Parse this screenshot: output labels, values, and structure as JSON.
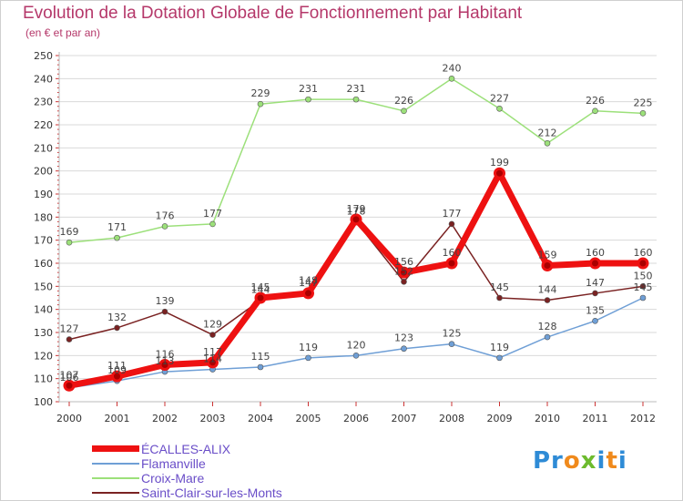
{
  "header": {
    "title": "Evolution de la Dotation Globale de Fonctionnement par Habitant",
    "subtitle": "(en € et par an)"
  },
  "logo": {
    "text": "Proxiti"
  },
  "colors": {
    "title": "#b5386a",
    "legend_text": "#6a4ec8",
    "grid": "#d9d9d9"
  },
  "chart_data": {
    "type": "line",
    "title": "Evolution de la Dotation Globale de Fonctionnement par Habitant",
    "subtitle": "(en € et par an)",
    "xlabel": "",
    "ylabel": "",
    "x": [
      "2000",
      "2001",
      "2002",
      "2003",
      "2004",
      "2005",
      "2006",
      "2007",
      "2008",
      "2009",
      "2010",
      "2011",
      "2012"
    ],
    "ylim": [
      100,
      250
    ],
    "yticks": [
      100,
      110,
      120,
      130,
      140,
      150,
      160,
      170,
      180,
      190,
      200,
      210,
      220,
      230,
      240,
      250
    ],
    "grid": "horizontal",
    "legend_position": "bottom-left",
    "series": [
      {
        "name": "ÉCALLES-ALIX",
        "color": "#ee1111",
        "values": [
          107,
          111,
          116,
          117,
          145,
          147,
          179,
          156,
          160,
          199,
          159,
          160,
          160
        ],
        "labels": [
          "107",
          "111",
          "116",
          "117",
          "145",
          "147",
          "179",
          "156",
          "160",
          "199",
          "159",
          "160",
          "160"
        ],
        "width": 7
      },
      {
        "name": "Flamanville",
        "color": "#6f9fd6",
        "values": [
          106,
          109,
          113,
          114,
          115,
          119,
          120,
          123,
          125,
          119,
          128,
          135,
          145
        ],
        "labels": [
          "106",
          "109",
          "113",
          "114",
          "115",
          "119",
          "120",
          "123",
          "125",
          "119",
          "128",
          "135",
          "145"
        ],
        "width": 1.5
      },
      {
        "name": "Croix-Mare",
        "color": "#9ce07a",
        "values": [
          169,
          171,
          176,
          177,
          229,
          231,
          231,
          226,
          240,
          227,
          212,
          226,
          225
        ],
        "labels": [
          "169",
          "171",
          "176",
          "177",
          "229",
          "231",
          "231",
          "226",
          "240",
          "227",
          "212",
          "226",
          "225"
        ],
        "width": 1.5
      },
      {
        "name": "Saint-Clair-sur-les-Monts",
        "color": "#7a2222",
        "values": [
          127,
          132,
          139,
          129,
          144,
          148,
          178,
          152,
          177,
          145,
          144,
          147,
          150
        ],
        "labels": [
          "127",
          "132",
          "139",
          "129",
          "144",
          "148",
          "178",
          "152",
          "177",
          "145",
          "144",
          "147",
          "150"
        ],
        "width": 1.5
      }
    ]
  }
}
